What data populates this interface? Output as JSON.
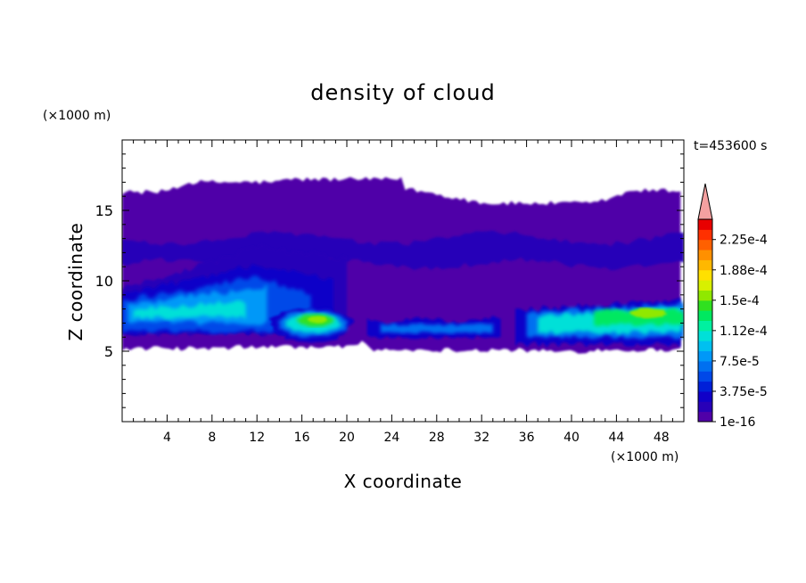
{
  "chart_data": {
    "type": "heatmap",
    "title": "density of cloud",
    "xlabel": "X coordinate",
    "ylabel": "Z coordinate",
    "x_unit": "(×1000 m)",
    "y_unit": "(×1000 m)",
    "time_label": "t=453600 s",
    "xlim": [
      0,
      50
    ],
    "ylim": [
      0,
      20
    ],
    "xticks": [
      "4",
      "8",
      "12",
      "16",
      "20",
      "24",
      "28",
      "32",
      "36",
      "40",
      "44",
      "48"
    ],
    "yticks": [
      "5",
      "10",
      "15"
    ],
    "grid": false,
    "colorbar": {
      "labels": [
        "1e-16",
        "3.75e-5",
        "7.5e-5",
        "1.12e-4",
        "1.5e-4",
        "1.88e-4",
        "2.25e-4"
      ],
      "label_levels": [
        0,
        3.75e-05,
        7.5e-05,
        0.000112,
        0.00015,
        0.000188,
        0.000225
      ],
      "levels": [
        1e-16,
        1.25e-05,
        2.5e-05,
        3.75e-05,
        5e-05,
        6.25e-05,
        7.5e-05,
        8.75e-05,
        0.0001,
        0.000112,
        0.000125,
        0.000137,
        0.00015,
        0.000162,
        0.000175,
        0.000188,
        0.0002,
        0.000212,
        0.000225,
        0.000237
      ],
      "colors": [
        "#5000a8",
        "#2800b8",
        "#1000c8",
        "#0020d8",
        "#0048e8",
        "#0070f0",
        "#0098f8",
        "#00c0f0",
        "#00e0d8",
        "#00f0a0",
        "#00e860",
        "#30e020",
        "#90e800",
        "#d8f000",
        "#ffe000",
        "#ffb800",
        "#ff9000",
        "#ff6000",
        "#ff3000",
        "#e80000"
      ],
      "extend_color": "#f4a0a0"
    },
    "field_description_regions": [
      {
        "label": "cloud envelope",
        "x": [
          0,
          50
        ],
        "z_bottom": [
          4.6,
          5.8
        ],
        "z_top": [
          15.4,
          17.4
        ],
        "level": 1e-16
      },
      {
        "label": "upper layer",
        "x": [
          0,
          50
        ],
        "z": [
          11,
          13.2
        ],
        "level": 1.25e-05
      },
      {
        "label": "left core",
        "x": [
          0,
          20
        ],
        "z": [
          5.6,
          11.4
        ],
        "peak": 0.00012
      },
      {
        "label": "center core",
        "x": [
          13,
          20.5
        ],
        "z": [
          5.8,
          8.2
        ],
        "peak": 0.000155
      },
      {
        "label": "middle band",
        "x": [
          21.5,
          34
        ],
        "z": [
          6,
          7.2
        ],
        "peak": 9e-05
      },
      {
        "label": "right core",
        "x": [
          35,
          50
        ],
        "z": [
          5.2,
          8.6
        ],
        "peak": 0.000155
      }
    ]
  }
}
